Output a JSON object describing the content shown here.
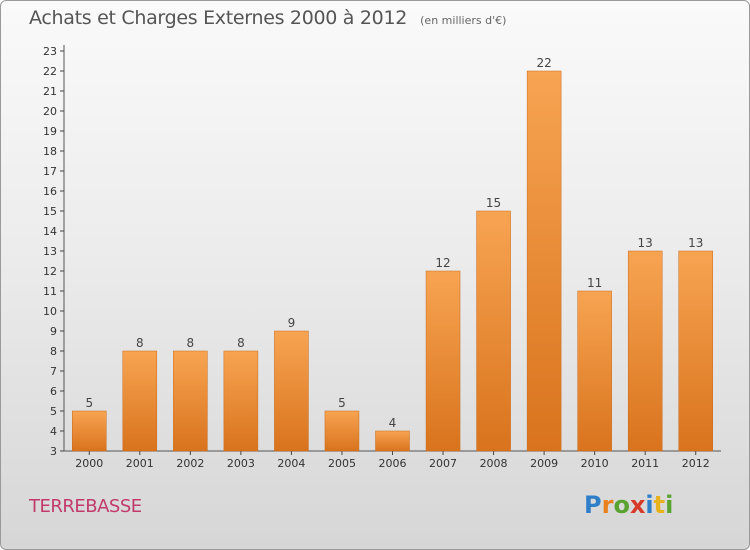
{
  "header": {
    "title": "Achats et Charges Externes 2000 à 2012",
    "subtitle": "(en milliers d'€)"
  },
  "footer": {
    "commune": "TERREBASSE",
    "logo_text": "Proxiti",
    "logo_letters": [
      {
        "char": "P",
        "color": "#2f7fc8"
      },
      {
        "char": "r",
        "color": "#e8821e"
      },
      {
        "char": "o",
        "color": "#5aa332"
      },
      {
        "char": "x",
        "color": "#d83a2a"
      },
      {
        "char": "i",
        "color": "#2f7fc8"
      },
      {
        "char": "t",
        "color": "#e8b21e"
      },
      {
        "char": "i",
        "color": "#5aa332"
      }
    ]
  },
  "colors": {
    "bar_light": "#f7a452",
    "bar_dark": "#d9731d",
    "axis": "#555555",
    "grid_tick": "#444444"
  },
  "chart_data": {
    "type": "bar",
    "title": "Achats et Charges Externes 2000 à 2012",
    "subtitle": "(en milliers d'€)",
    "categories": [
      "2000",
      "2001",
      "2002",
      "2003",
      "2004",
      "2005",
      "2006",
      "2007",
      "2008",
      "2009",
      "2010",
      "2011",
      "2012"
    ],
    "values": [
      5,
      8,
      8,
      8,
      9,
      5,
      4,
      12,
      15,
      22,
      11,
      13,
      13
    ],
    "ylim": [
      3,
      23
    ],
    "yticks": [
      3,
      4,
      5,
      6,
      7,
      8,
      9,
      10,
      11,
      12,
      13,
      14,
      15,
      16,
      17,
      18,
      19,
      20,
      21,
      22,
      23
    ],
    "xlabel": "",
    "ylabel": "",
    "grid": false,
    "data_labels": true
  }
}
